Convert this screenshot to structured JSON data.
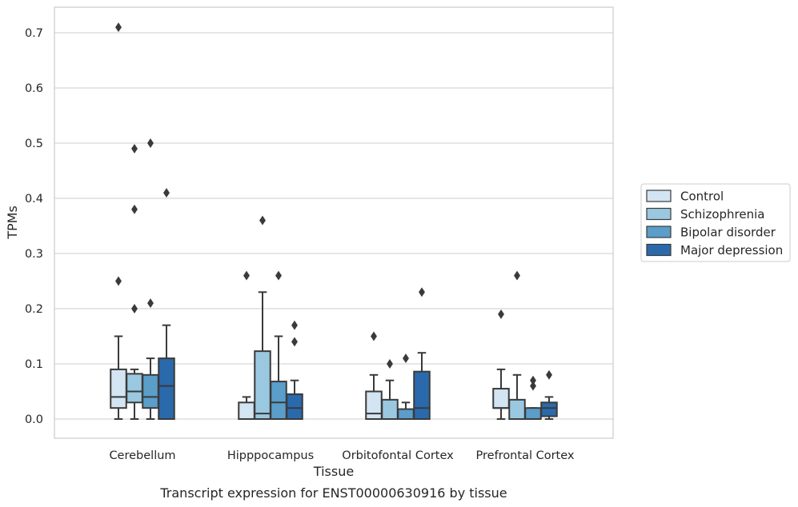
{
  "chart_data": {
    "type": "box",
    "caption": "Transcript expression for ENST00000630916 by tissue",
    "xlabel": "Tissue",
    "ylabel": "TPMs",
    "ylim": [
      -0.035,
      0.745
    ],
    "yticks": [
      0.0,
      0.1,
      0.2,
      0.3,
      0.4,
      0.5,
      0.6,
      0.7
    ],
    "ytick_labels": [
      "0.0",
      "0.1",
      "0.2",
      "0.3",
      "0.4",
      "0.5",
      "0.6",
      "0.7"
    ],
    "grid": "horizontal",
    "legend_position": "right",
    "categories": [
      "Cerebellum",
      "Hipppocampus",
      "Orbitofontal Cortex",
      "Prefrontal Cortex"
    ],
    "series": [
      {
        "name": "Control",
        "color": "#d3e4f3",
        "boxes": [
          {
            "whisker_low": 0.0,
            "q1": 0.02,
            "median": 0.04,
            "q3": 0.09,
            "whisker_high": 0.15,
            "outliers": [
              0.25,
              0.71
            ]
          },
          {
            "whisker_low": 0.0,
            "q1": 0.0,
            "median": 0.0,
            "q3": 0.03,
            "whisker_high": 0.04,
            "outliers": [
              0.26
            ]
          },
          {
            "whisker_low": 0.0,
            "q1": 0.0,
            "median": 0.01,
            "q3": 0.05,
            "whisker_high": 0.08,
            "outliers": [
              0.15
            ]
          },
          {
            "whisker_low": 0.0,
            "q1": 0.02,
            "median": 0.02,
            "q3": 0.055,
            "whisker_high": 0.09,
            "outliers": [
              0.19
            ]
          }
        ]
      },
      {
        "name": "Schizophrenia",
        "color": "#9ac8e0",
        "boxes": [
          {
            "whisker_low": 0.0,
            "q1": 0.03,
            "median": 0.05,
            "q3": 0.082,
            "whisker_high": 0.09,
            "outliers": [
              0.2,
              0.38,
              0.49
            ]
          },
          {
            "whisker_low": 0.0,
            "q1": 0.0,
            "median": 0.01,
            "q3": 0.123,
            "whisker_high": 0.23,
            "outliers": [
              0.36
            ]
          },
          {
            "whisker_low": 0.0,
            "q1": 0.0,
            "median": 0.0,
            "q3": 0.035,
            "whisker_high": 0.07,
            "outliers": [
              0.1
            ]
          },
          {
            "whisker_low": 0.0,
            "q1": 0.0,
            "median": 0.0,
            "q3": 0.035,
            "whisker_high": 0.08,
            "outliers": [
              0.26
            ]
          }
        ]
      },
      {
        "name": "Bipolar disorder",
        "color": "#5a9ec9",
        "boxes": [
          {
            "whisker_low": 0.0,
            "q1": 0.02,
            "median": 0.04,
            "q3": 0.08,
            "whisker_high": 0.11,
            "outliers": [
              0.21,
              0.5
            ]
          },
          {
            "whisker_low": 0.0,
            "q1": 0.0,
            "median": 0.03,
            "q3": 0.068,
            "whisker_high": 0.15,
            "outliers": [
              0.26
            ]
          },
          {
            "whisker_low": 0.0,
            "q1": 0.0,
            "median": 0.0,
            "q3": 0.018,
            "whisker_high": 0.03,
            "outliers": [
              0.11
            ]
          },
          {
            "whisker_low": 0.0,
            "q1": 0.0,
            "median": 0.0,
            "q3": 0.02,
            "whisker_high": 0.02,
            "outliers": [
              0.06,
              0.07
            ]
          }
        ]
      },
      {
        "name": "Major depression",
        "color": "#2a6aac",
        "boxes": [
          {
            "whisker_low": 0.0,
            "q1": 0.0,
            "median": 0.06,
            "q3": 0.11,
            "whisker_high": 0.17,
            "outliers": [
              0.41
            ]
          },
          {
            "whisker_low": 0.0,
            "q1": 0.0,
            "median": 0.02,
            "q3": 0.045,
            "whisker_high": 0.07,
            "outliers": [
              0.14,
              0.17
            ]
          },
          {
            "whisker_low": 0.0,
            "q1": 0.0,
            "median": 0.02,
            "q3": 0.086,
            "whisker_high": 0.12,
            "outliers": [
              0.23
            ]
          },
          {
            "whisker_low": 0.0,
            "q1": 0.005,
            "median": 0.02,
            "q3": 0.03,
            "whisker_high": 0.04,
            "outliers": [
              0.08
            ]
          }
        ]
      }
    ]
  }
}
